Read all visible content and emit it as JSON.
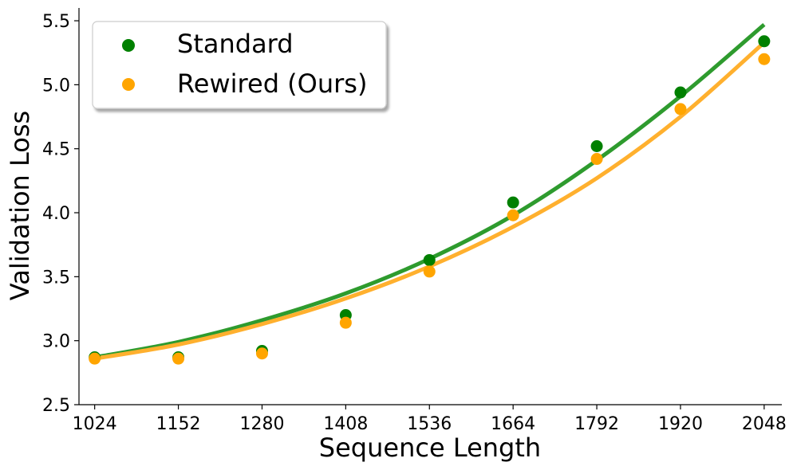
{
  "chart_data": {
    "type": "scatter",
    "xlabel": "Sequence Length",
    "ylabel": "Validation Loss",
    "xlim": [
      1000,
      2075
    ],
    "ylim": [
      2.5,
      5.6
    ],
    "x_ticks": [
      1024,
      1152,
      1280,
      1408,
      1536,
      1664,
      1792,
      1920,
      2048
    ],
    "y_ticks": [
      "2.5",
      "3.0",
      "3.5",
      "4.0",
      "4.5",
      "5.0",
      "5.5"
    ],
    "x": [
      1024,
      1152,
      1280,
      1408,
      1536,
      1664,
      1792,
      1920,
      2048
    ],
    "legend_position": "top-left",
    "grid": false,
    "series": [
      {
        "name": "Standard",
        "color": "#008000",
        "fit_color": "#2e9b2e",
        "values": [
          2.87,
          2.87,
          2.92,
          3.2,
          3.63,
          4.08,
          4.52,
          4.94,
          5.34
        ],
        "fit": [
          2.87,
          2.99,
          3.16,
          3.37,
          3.64,
          3.98,
          4.41,
          4.91,
          5.47
        ]
      },
      {
        "name": "Rewired (Ours)",
        "color": "#ffa500",
        "fit_color": "#ffb02e",
        "values": [
          2.86,
          2.86,
          2.9,
          3.14,
          3.54,
          3.98,
          4.42,
          4.81,
          5.2
        ],
        "fit": [
          2.86,
          2.97,
          3.13,
          3.33,
          3.58,
          3.89,
          4.27,
          4.75,
          5.33
        ]
      }
    ]
  }
}
